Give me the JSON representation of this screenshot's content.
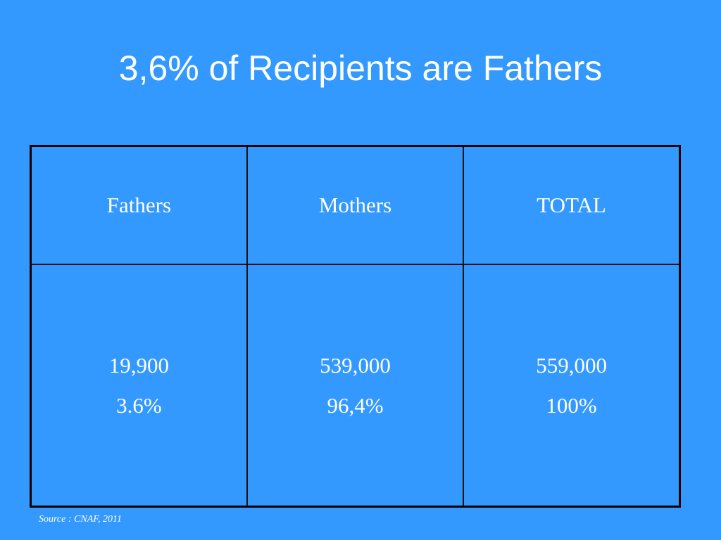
{
  "slide": {
    "title": "3,6% of Recipients are Fathers",
    "background_color": "#3399ff",
    "text_color": "#ffffff"
  },
  "table": {
    "headers": [
      "Fathers",
      "Mothers",
      "TOTAL"
    ],
    "rows": [
      {
        "cells": [
          {
            "count": "19,900",
            "percent": "3.6%"
          },
          {
            "count": "539,000",
            "percent": "96,4%"
          },
          {
            "count": "559,000",
            "percent": "100%"
          }
        ]
      }
    ]
  },
  "source": "Source : CNAF, 2011"
}
